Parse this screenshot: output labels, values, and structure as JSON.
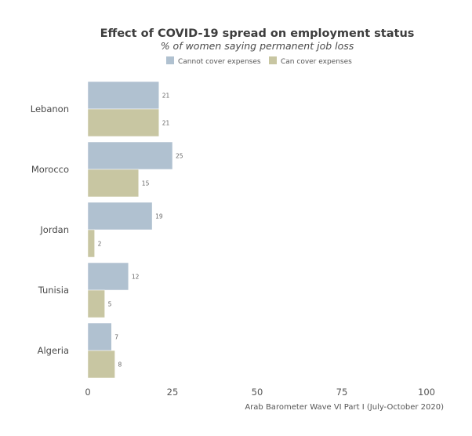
{
  "chart_data": {
    "type": "bar",
    "orientation": "horizontal",
    "title": "Effect of COVID-19 spread on employment status",
    "subtitle": "% of women saying permanent job loss",
    "categories": [
      "Lebanon",
      "Morocco",
      "Jordan",
      "Tunisia",
      "Algeria"
    ],
    "series": [
      {
        "name": "Cannot cover expenses",
        "color": "#b0c1d0",
        "values": [
          21,
          25,
          19,
          12,
          7
        ]
      },
      {
        "name": "Can cover expenses",
        "color": "#c8c6a2",
        "values": [
          21,
          15,
          2,
          5,
          8
        ]
      }
    ],
    "xlabel": "",
    "ylabel": "",
    "xlim": [
      0,
      100
    ],
    "xticks": [
      0,
      25,
      50,
      75,
      100
    ],
    "grid": false,
    "legend_position": "top",
    "caption": "Arab Barometer Wave VI Part I (July-October 2020)"
  }
}
